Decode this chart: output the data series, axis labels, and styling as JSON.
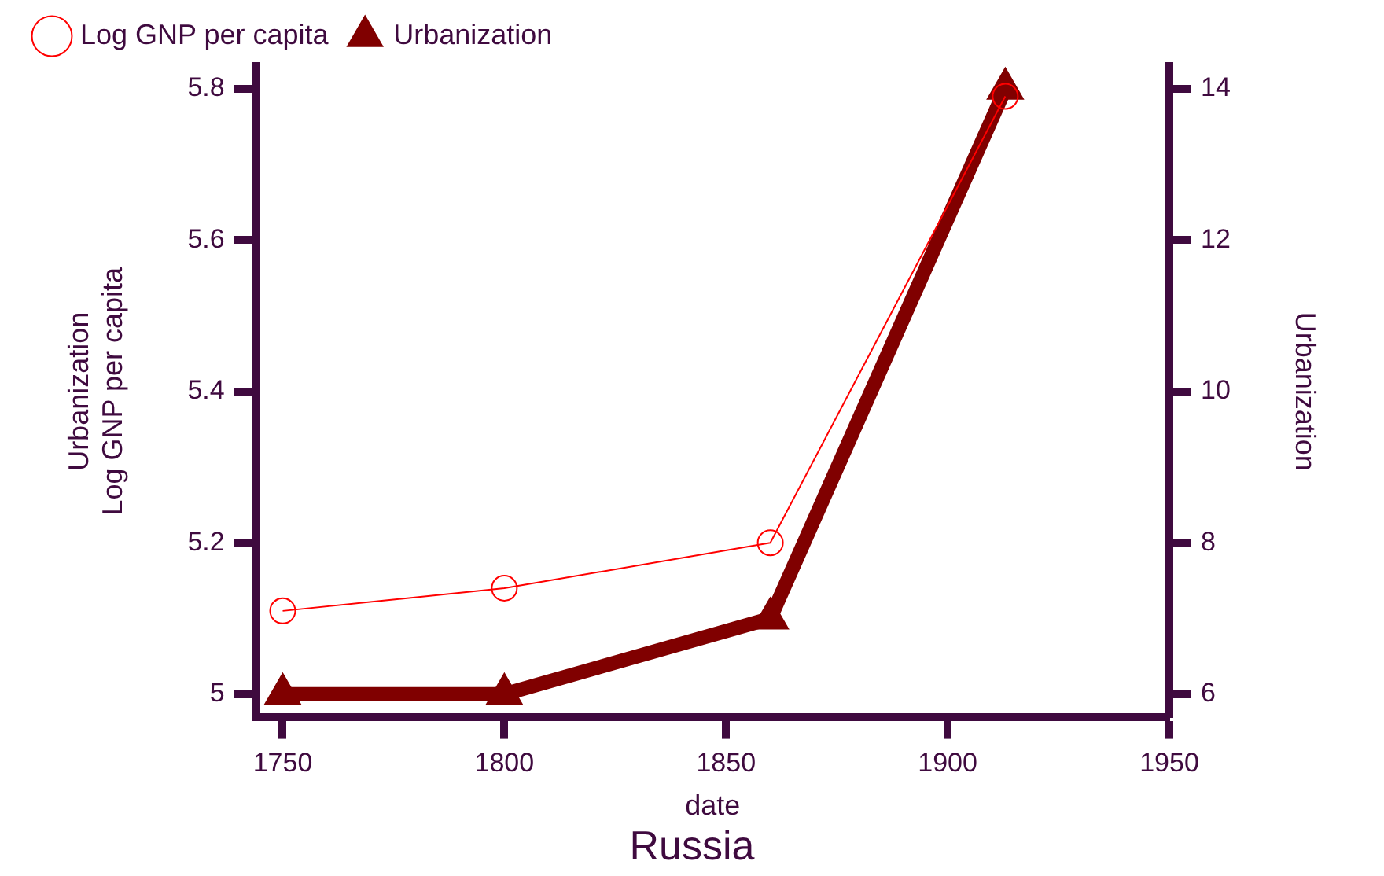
{
  "chart_data": {
    "type": "line",
    "title": "Russia",
    "xlabel": "date",
    "ylabel": "Urbanization\nLog GNP per capita",
    "y2label": "Urbanization",
    "x": [
      1750,
      1800,
      1860,
      1913
    ],
    "series": [
      {
        "name": "Log GNP per capita",
        "color": "#ff0000",
        "values": [
          5.11,
          5.14,
          5.2,
          5.79
        ],
        "marker": "circle"
      },
      {
        "name": "Urbanization",
        "color": "#800000",
        "values": [
          6,
          6,
          7,
          14
        ],
        "marker": "triangle",
        "axis": "y2"
      }
    ],
    "xlim": [
      1744,
      1950
    ],
    "xticks": [
      1750,
      1800,
      1850,
      1900,
      1950
    ],
    "ylim": [
      4.97,
      5.83
    ],
    "yticks": [
      5,
      5.2,
      5.4,
      5.6,
      5.8
    ],
    "y2lim": [
      5.7,
      14.3
    ],
    "y2ticks": [
      6,
      8,
      10,
      12,
      14
    ],
    "grid": false,
    "legend": "top",
    "line_style": "solid"
  }
}
